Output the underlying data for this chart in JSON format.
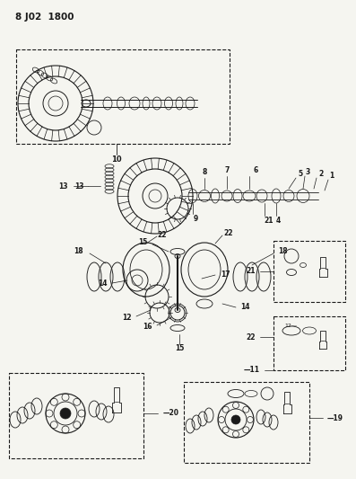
{
  "title": "8 J02  1800",
  "bg_color": "#f5f5f0",
  "ink_color": "#1a1a1a",
  "fig_width": 3.97,
  "fig_height": 5.33,
  "dpi": 100
}
